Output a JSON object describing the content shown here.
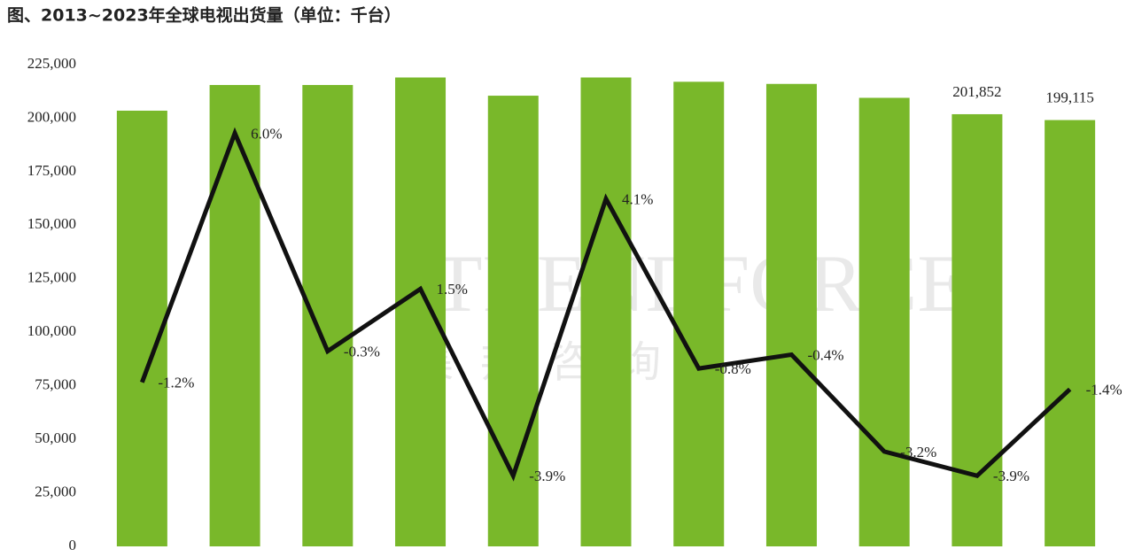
{
  "chart_data": {
    "type": "bar",
    "title": "图、2013~2023年全球电视出货量（单位：千台）",
    "annotations": [
      "TRENDFORCE",
      "集邦咨询"
    ],
    "categories": [
      null,
      null,
      null,
      null,
      null,
      null,
      null,
      null,
      null,
      null,
      null
    ],
    "series": [
      {
        "type": "bar",
        "color": "#79b82a",
        "values": [
          203500,
          215500,
          215500,
          219000,
          210500,
          219000,
          217000,
          216000,
          209500,
          201852,
          199115
        ],
        "value_labels": [
          null,
          null,
          null,
          null,
          null,
          null,
          null,
          null,
          null,
          "201,852",
          "199,115"
        ]
      },
      {
        "type": "line",
        "axis": "y2",
        "color": "#111111",
        "values": [
          -1.2,
          6.0,
          -0.3,
          1.5,
          -3.9,
          4.1,
          -0.8,
          -0.4,
          -3.2,
          -3.9,
          -1.4
        ],
        "value_labels": [
          "-1.2%",
          "6.0%",
          "-0.3%",
          "1.5%",
          "-3.9%",
          "4.1%",
          "-0.8%",
          "-0.4%",
          "-3.2%",
          "-3.9%",
          "-1.4%"
        ]
      }
    ],
    "ylim": [
      0,
      225000
    ],
    "yticks": [
      0,
      {
        "value": 25000,
        "label": "25,000"
      },
      {
        "value": 50000,
        "label": "50,000"
      },
      {
        "value": 75000,
        "label": "75,000"
      },
      {
        "value": 100000,
        "label": "100,000"
      },
      {
        "value": 125000,
        "label": "125,000"
      },
      {
        "value": 150000,
        "label": "150,000"
      },
      {
        "value": 175000,
        "label": "175,000"
      },
      {
        "value": 200000,
        "label": "200,000"
      },
      {
        "value": 225000,
        "label": "225,000"
      }
    ],
    "y2lim": [
      -5.94,
      7.98
    ],
    "grid": false
  }
}
